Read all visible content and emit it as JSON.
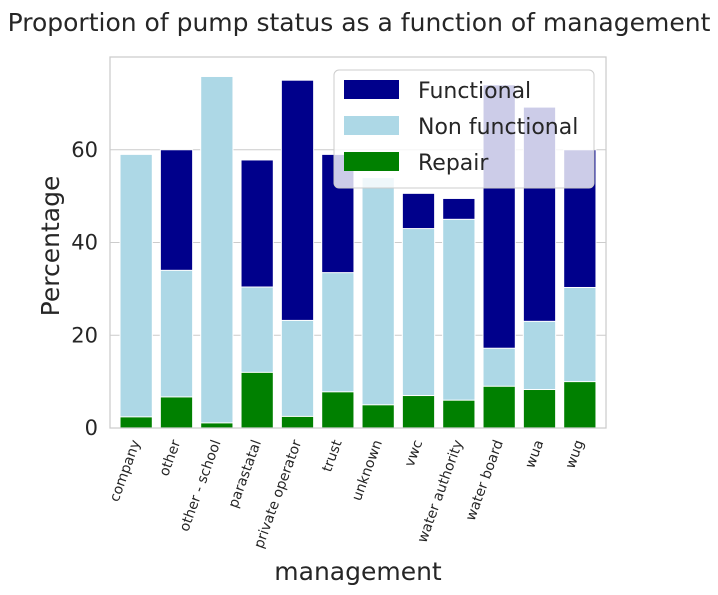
{
  "chart_data": {
    "type": "bar",
    "title": "Proportion of pump status as a function of management",
    "xlabel": "management",
    "ylabel": "Percentage",
    "ylim": [
      0,
      80
    ],
    "yticks": [
      0,
      20,
      40,
      60
    ],
    "grid": "horizontal",
    "legend_position": "top-right",
    "categories": [
      "company",
      "other",
      "other - school",
      "parastatal",
      "private operator",
      "trust",
      "unknown",
      "vwc",
      "water authority",
      "water board",
      "wua",
      "wug"
    ],
    "series": [
      {
        "name": "Functional",
        "color": "#00008b",
        "values": [
          0,
          60,
          0,
          57.8,
          75,
          59,
          0,
          50.6,
          49.5,
          74,
          69.2,
          60
        ]
      },
      {
        "name": "Non functional",
        "color": "#add8e6",
        "values": [
          59,
          34,
          75.8,
          30.4,
          23.2,
          33.5,
          54,
          43,
          45,
          17.2,
          23,
          30.3
        ]
      },
      {
        "name": "Repair",
        "color": "#008000",
        "values": [
          2.4,
          6.7,
          1.1,
          12,
          2.5,
          7.8,
          5,
          7,
          6,
          9,
          8.3,
          10
        ]
      }
    ]
  }
}
